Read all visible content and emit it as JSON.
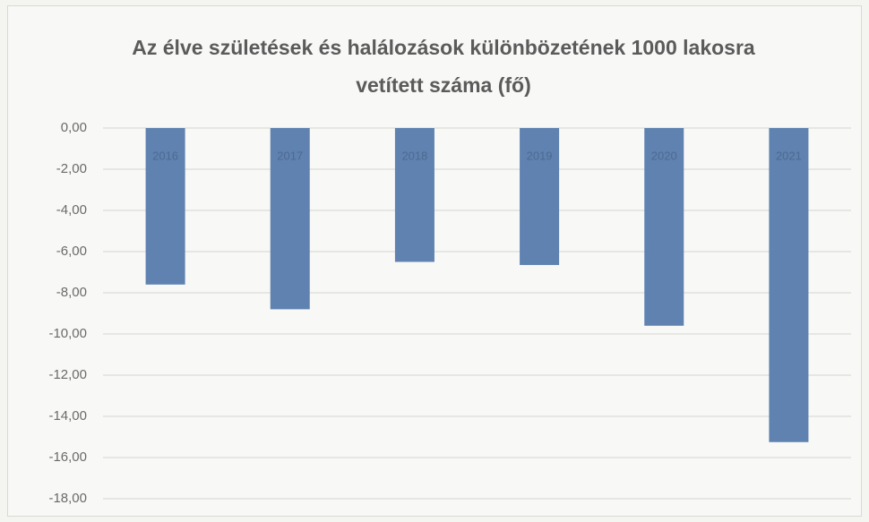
{
  "chart_data": {
    "type": "bar",
    "title": "Az élve születések és halálozások különbözetének 1000 lakosra vetített száma (fő)",
    "categories": [
      "2016",
      "2017",
      "2018",
      "2019",
      "2020",
      "2021"
    ],
    "values": [
      -7.6,
      -8.8,
      -6.5,
      -6.65,
      -9.6,
      -15.25
    ],
    "color": "#5f82b0",
    "ylim": [
      -18,
      0
    ],
    "yticks": [
      {
        "value": 0,
        "label": "0,00"
      },
      {
        "value": -2,
        "label": "-2,00"
      },
      {
        "value": -4,
        "label": "-4,00"
      },
      {
        "value": -6,
        "label": "-6,00"
      },
      {
        "value": -8,
        "label": "-8,00"
      },
      {
        "value": -10,
        "label": "-10,00"
      },
      {
        "value": -12,
        "label": "-12,00"
      },
      {
        "value": -14,
        "label": "-14,00"
      },
      {
        "value": -16,
        "label": "-16,00"
      },
      {
        "value": -18,
        "label": "-18,00"
      }
    ],
    "grid": true
  }
}
